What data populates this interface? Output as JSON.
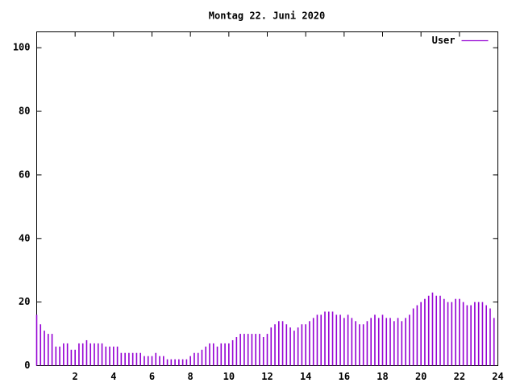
{
  "chart_data": {
    "type": "impulses",
    "title": "Montag 22. Juni 2020",
    "xlim": [
      0,
      24
    ],
    "xticks": [
      2,
      4,
      6,
      8,
      10,
      12,
      14,
      16,
      18,
      20,
      22,
      24
    ],
    "ylim": [
      0,
      105
    ],
    "yticks": [
      0,
      20,
      40,
      60,
      80,
      100
    ],
    "legend": "top-right",
    "x": [
      0,
      0.2,
      0.4,
      0.6,
      0.8,
      1,
      1.2,
      1.4,
      1.6,
      1.8,
      2,
      2.2,
      2.4,
      2.6,
      2.8,
      3,
      3.2,
      3.4,
      3.6,
      3.8,
      4,
      4.2,
      4.4,
      4.6,
      4.8,
      5,
      5.2,
      5.4,
      5.6,
      5.8,
      6,
      6.2,
      6.4,
      6.6,
      6.8,
      7,
      7.2,
      7.4,
      7.6,
      7.8,
      8,
      8.2,
      8.4,
      8.6,
      8.8,
      9,
      9.2,
      9.4,
      9.6,
      9.8,
      10,
      10.2,
      10.4,
      10.6,
      10.8,
      11,
      11.2,
      11.4,
      11.6,
      11.8,
      12,
      12.2,
      12.4,
      12.6,
      12.8,
      13,
      13.2,
      13.4,
      13.6,
      13.8,
      14,
      14.2,
      14.4,
      14.6,
      14.8,
      15,
      15.2,
      15.4,
      15.6,
      15.8,
      16,
      16.2,
      16.4,
      16.6,
      16.8,
      17,
      17.2,
      17.4,
      17.6,
      17.8,
      18,
      18.2,
      18.4,
      18.6,
      18.8,
      19,
      19.2,
      19.4,
      19.6,
      19.8,
      20,
      20.2,
      20.4,
      20.6,
      20.8,
      21,
      21.2,
      21.4,
      21.6,
      21.8,
      22,
      22.2,
      22.4,
      22.6,
      22.8,
      23,
      23.2,
      23.4,
      23.6,
      23.8
    ],
    "series": [
      {
        "name": "User",
        "color": "#9400d3",
        "values": [
          16,
          13,
          11,
          10,
          10,
          6,
          6,
          7,
          7,
          5,
          5,
          7,
          7,
          8,
          7,
          7,
          7,
          7,
          6,
          6,
          6,
          6,
          4,
          4,
          4,
          4,
          4,
          4,
          3,
          3,
          3,
          4,
          3,
          3,
          2,
          2,
          2,
          2,
          2,
          2,
          3,
          4,
          4,
          5,
          6,
          7,
          7,
          6,
          7,
          7,
          7,
          8,
          9,
          10,
          10,
          10,
          10,
          10,
          10,
          9,
          10,
          12,
          13,
          14,
          14,
          13,
          12,
          11,
          12,
          13,
          13,
          14,
          15,
          16,
          16,
          17,
          17,
          17,
          16,
          16,
          15,
          16,
          15,
          14,
          13,
          13,
          14,
          15,
          16,
          15,
          16,
          15,
          15,
          14,
          15,
          14,
          15,
          16,
          18,
          19,
          20,
          21,
          22,
          23,
          22,
          22,
          21,
          20,
          20,
          21,
          21,
          20,
          19,
          19,
          20,
          20,
          20,
          19,
          18,
          15
        ]
      }
    ]
  }
}
